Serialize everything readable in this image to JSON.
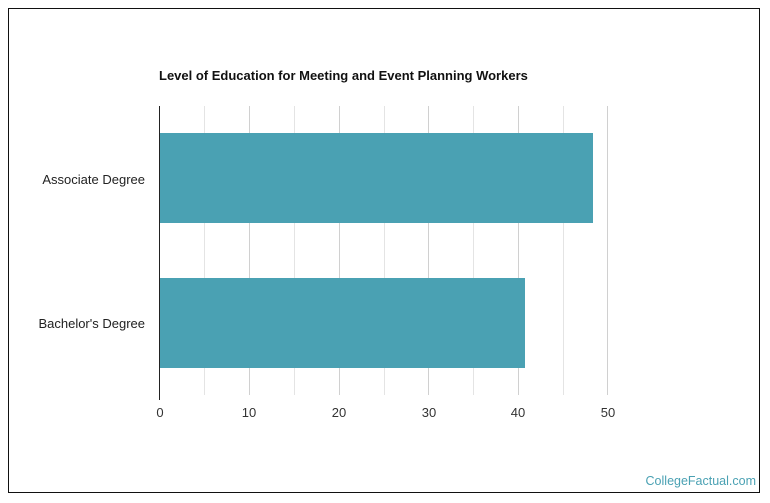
{
  "chart_data": {
    "type": "bar",
    "orientation": "horizontal",
    "title": "Level of Education for Meeting and Event Planning Workers",
    "categories": [
      "Associate Degree",
      "Bachelor's Degree"
    ],
    "values": [
      48.3,
      40.8
    ],
    "xlabel": "",
    "ylabel": "",
    "xlim": [
      0,
      50
    ],
    "xticks": [
      "0",
      "10",
      "20",
      "30",
      "40",
      "50"
    ],
    "grid": true,
    "legend": null,
    "bar_color": "#4aa1b3"
  },
  "chart": {
    "title": "Level of Education for Meeting and Event Planning Workers",
    "bars": [
      {
        "label": "Associate Degree",
        "value": 48.3
      },
      {
        "label": "Bachelor's Degree",
        "value": 40.8
      }
    ],
    "ticks": [
      "0",
      "10",
      "20",
      "30",
      "40",
      "50"
    ]
  },
  "footer": {
    "credit": "CollegeFactual.com"
  },
  "colors": {
    "bar": "#4aa1b3",
    "credit": "#4aa1b3"
  }
}
